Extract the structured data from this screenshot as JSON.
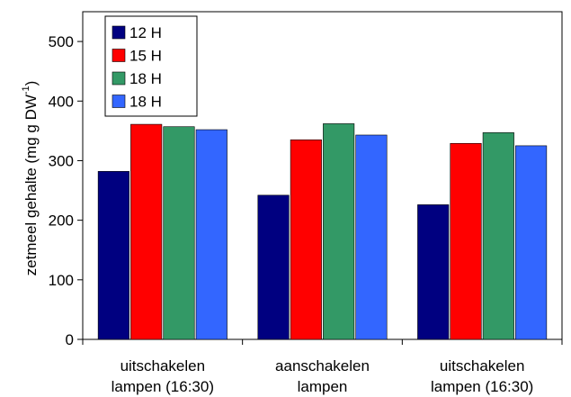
{
  "chart_data": {
    "type": "bar",
    "categories": [
      [
        "uitschakelen",
        "lampen (16:30)"
      ],
      [
        "aanschakelen",
        "lampen"
      ],
      [
        "uitschakelen",
        "lampen (16:30)"
      ]
    ],
    "series": [
      {
        "name": "12 H",
        "color": "#000080",
        "values": [
          282,
          242,
          226
        ]
      },
      {
        "name": "15 H",
        "color": "#ff0000",
        "values": [
          361,
          335,
          329
        ]
      },
      {
        "name": "18 H",
        "color": "#339966",
        "values": [
          357,
          362,
          347
        ]
      },
      {
        "name": "18 H",
        "color": "#3366ff",
        "values": [
          352,
          343,
          325
        ]
      }
    ],
    "ylabel": {
      "main": "zetmeel gehalte (mg g DW",
      "sup": "-1",
      "close": ")"
    },
    "ylim": [
      0,
      550
    ],
    "yticks": [
      0,
      100,
      200,
      300,
      400,
      500
    ],
    "legend": "top-left",
    "grid": false
  }
}
